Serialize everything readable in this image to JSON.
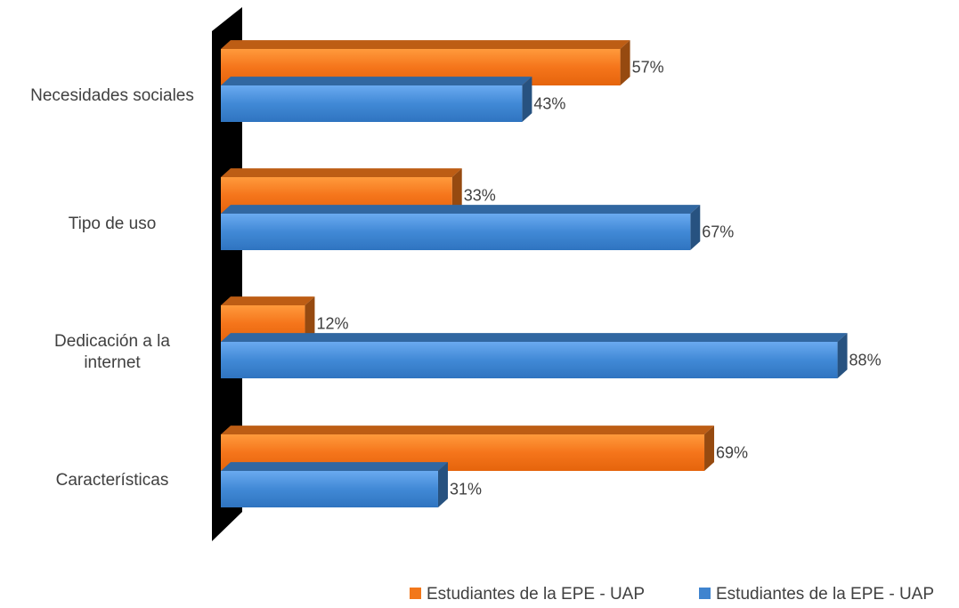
{
  "chart_data": {
    "type": "bar",
    "orientation": "horizontal",
    "three_d": true,
    "categories": [
      "Necesidades sociales",
      "Tipo de uso",
      "Dedicación a la internet",
      "Características"
    ],
    "category_label_lines": [
      [
        "Necesidades sociales"
      ],
      [
        "Tipo de uso"
      ],
      [
        "Dedicación a la",
        "internet"
      ],
      [
        "Características"
      ]
    ],
    "series": [
      {
        "name": "Estudiantes de la EPE - UAP",
        "color": "#f2771a",
        "values": [
          57,
          33,
          12,
          69
        ],
        "labels": [
          "57%",
          "33%",
          "12%",
          "69%"
        ]
      },
      {
        "name": "Estudiantes de la EPE - UAP",
        "color": "#3f84cf",
        "values": [
          43,
          67,
          88,
          31
        ],
        "labels": [
          "43%",
          "67%",
          "88%",
          "31%"
        ]
      }
    ],
    "value_unit": "%",
    "xlim": [
      0,
      100
    ],
    "grid": false,
    "legend_position": "bottom-right"
  }
}
